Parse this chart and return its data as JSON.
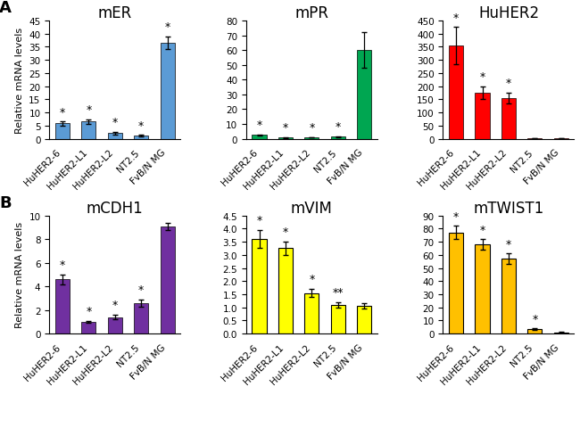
{
  "panel_A": {
    "mER": {
      "title": "mER",
      "categories": [
        "HuHER2-6",
        "HuHER2-L1",
        "HuHER2-L2",
        "NT2.5",
        "FvB/N MG"
      ],
      "values": [
        5.8,
        6.5,
        2.2,
        1.1,
        36.5
      ],
      "errors": [
        0.7,
        0.8,
        0.5,
        0.3,
        2.5
      ],
      "color": "#5B9BD5",
      "ylim": [
        0,
        45
      ],
      "yticks": [
        0,
        5,
        10,
        15,
        20,
        25,
        30,
        35,
        40,
        45
      ],
      "star_indices": [
        0,
        1,
        2,
        3,
        4
      ],
      "double_star_indices": []
    },
    "mPR": {
      "title": "mPR",
      "categories": [
        "HuHER2-6",
        "HuHER2-L1",
        "HuHER2-L2",
        "NT2.5",
        "FvB/N MG"
      ],
      "values": [
        2.5,
        0.8,
        1.0,
        1.5,
        60.0
      ],
      "errors": [
        0.4,
        0.2,
        0.2,
        0.3,
        12.0
      ],
      "color": "#00A651",
      "ylim": [
        0,
        80
      ],
      "yticks": [
        0,
        10,
        20,
        30,
        40,
        50,
        60,
        70,
        80
      ],
      "star_indices": [
        0,
        1,
        2,
        3
      ],
      "double_star_indices": []
    },
    "HuHER2": {
      "title": "HuHER2",
      "categories": [
        "HuHER2-6",
        "HuHER2-L1",
        "HuHER2-L2",
        "NT2.5",
        "FvB/N MG"
      ],
      "values": [
        355,
        175,
        155,
        2,
        1
      ],
      "errors": [
        70,
        25,
        20,
        0.5,
        0.2
      ],
      "color": "#FF0000",
      "ylim": [
        0,
        450
      ],
      "yticks": [
        0,
        50,
        100,
        150,
        200,
        250,
        300,
        350,
        400,
        450
      ],
      "star_indices": [
        0,
        1,
        2
      ],
      "double_star_indices": []
    }
  },
  "panel_B": {
    "mCDH1": {
      "title": "mCDH1",
      "categories": [
        "HuHER2-6",
        "HuHER2-L1",
        "HuHER2-L2",
        "NT2.5",
        "FvB/N MG"
      ],
      "values": [
        4.6,
        1.0,
        1.4,
        2.6,
        9.1
      ],
      "errors": [
        0.4,
        0.1,
        0.2,
        0.3,
        0.3
      ],
      "color": "#7030A0",
      "ylim": [
        0,
        10
      ],
      "yticks": [
        0,
        2,
        4,
        6,
        8,
        10
      ],
      "star_indices": [
        0,
        1,
        2,
        3
      ],
      "double_star_indices": []
    },
    "mVIM": {
      "title": "mVIM",
      "categories": [
        "HuHER2-6",
        "HuHER2-L1",
        "HuHER2-L2",
        "NT2.5",
        "FvB/N MG"
      ],
      "values": [
        3.6,
        3.25,
        1.55,
        1.1,
        1.05
      ],
      "errors": [
        0.35,
        0.25,
        0.15,
        0.1,
        0.1
      ],
      "color": "#FFFF00",
      "ylim": [
        0,
        4.5
      ],
      "yticks": [
        0,
        0.5,
        1.0,
        1.5,
        2.0,
        2.5,
        3.0,
        3.5,
        4.0,
        4.5
      ],
      "star_indices": [
        0,
        1,
        2
      ],
      "double_star_indices": [
        3
      ]
    },
    "mTWIST1": {
      "title": "mTWIST1",
      "categories": [
        "HuHER2-6",
        "HuHER2-L1",
        "HuHER2-L2",
        "NT2.5",
        "FvB/N MG"
      ],
      "values": [
        77,
        68,
        57,
        3.5,
        1.0
      ],
      "errors": [
        5,
        4,
        4,
        0.5,
        0.2
      ],
      "color": "#FFC000",
      "ylim": [
        0,
        90
      ],
      "yticks": [
        0,
        10,
        20,
        30,
        40,
        50,
        60,
        70,
        80,
        90
      ],
      "star_indices": [
        0,
        1,
        2,
        3
      ],
      "double_star_indices": []
    }
  },
  "ylabel": "Relative mRNA levels",
  "background_color": "#FFFFFF",
  "bar_width": 0.55,
  "label_fontsize": 7.5,
  "title_fontsize": 12,
  "tick_fontsize": 7.5,
  "ylabel_fontsize": 8,
  "star_fontsize": 9
}
